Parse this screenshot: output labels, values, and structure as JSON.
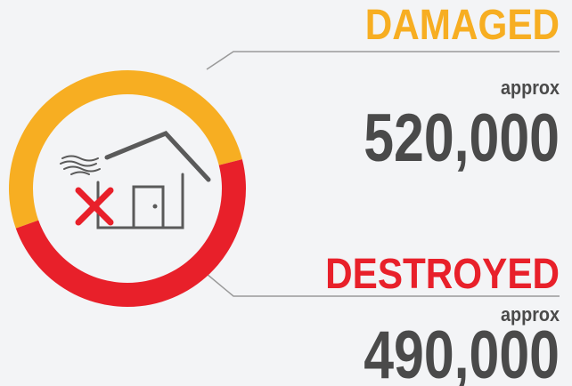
{
  "chart_data": {
    "type": "donut",
    "categories": [
      "DAMAGED",
      "DESTROYED"
    ],
    "values": [
      520000,
      490000
    ],
    "value_labels": [
      "520,000",
      "490,000"
    ],
    "qualifiers": [
      "approx",
      "approx"
    ],
    "colors": [
      "#f7ae22",
      "#e8202a"
    ]
  }
}
